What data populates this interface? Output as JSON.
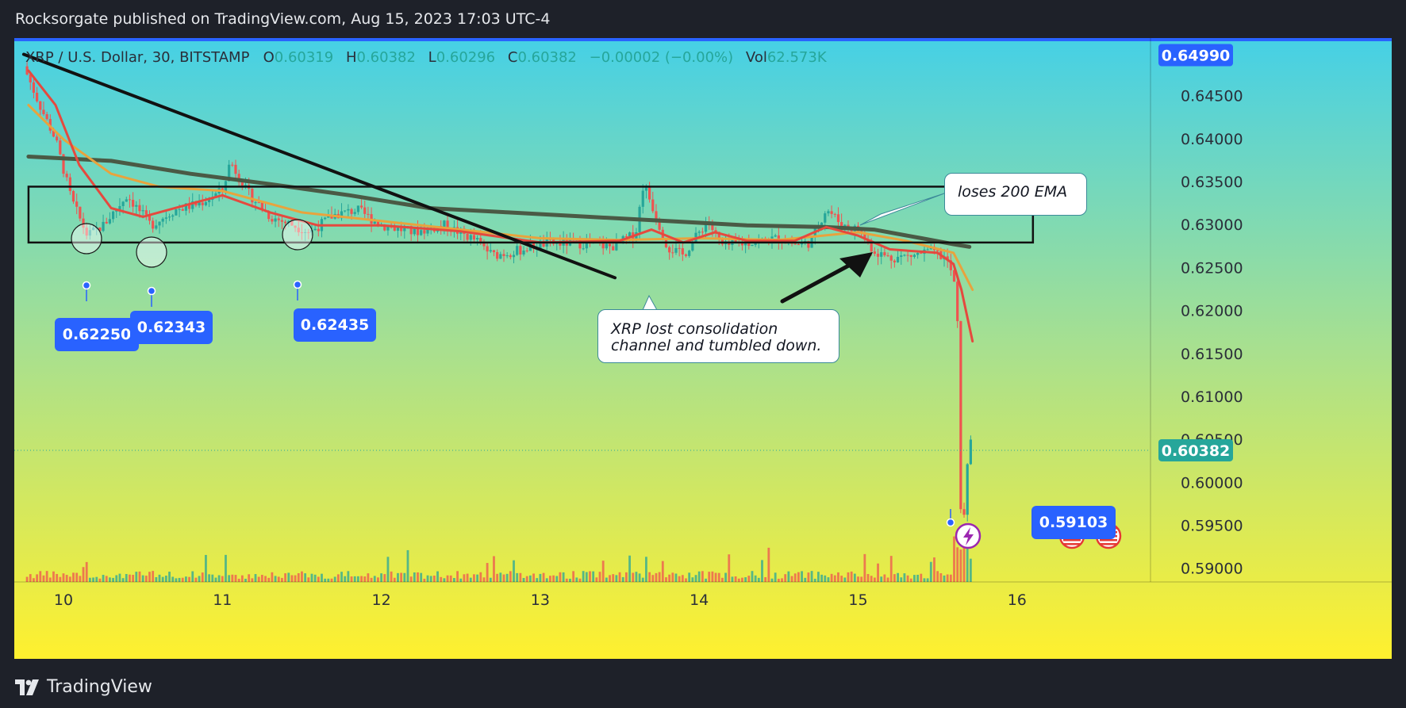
{
  "header": {
    "published_text": "Rocksorgate published on TradingView.com, Aug 15, 2023 17:03 UTC-4"
  },
  "legend": {
    "symbol": "XRP / U.S. Dollar, 30, BITSTAMP",
    "open_key": "O",
    "open": "0.60319",
    "high_key": "H",
    "high": "0.60382",
    "low_key": "L",
    "low": "0.60296",
    "close_key": "C",
    "close": "0.60382",
    "change": "−0.00002 (−0.00%)",
    "vol_key": "Vol",
    "vol": "62.573K"
  },
  "annotations": {
    "callout_consolidation": "XRP lost consolidation channel and tumbled down.",
    "callout_ema": "loses 200 EMA",
    "tags": [
      "0.62250",
      "0.62343",
      "0.62435",
      "0.59103"
    ]
  },
  "price_labels": {
    "top": "0.64990",
    "last": "0.60382"
  },
  "footer": {
    "brand": "TradingView"
  },
  "colors": {
    "bg_top": "#47d1e0",
    "bg_bottom": "#fff030",
    "up": "#26a69a",
    "down": "#ef5350",
    "ema_fast": "#e5493e",
    "ema_mid": "#e8a33d",
    "ema_200": "#4a5a45",
    "tag": "#2962ff",
    "last_label": "#26a69a"
  },
  "icons": [
    "tradingview-logo-icon",
    "lightning-icon",
    "us-flag-icon"
  ],
  "chart_data": {
    "type": "candlestick",
    "x_axis": {
      "type": "date",
      "tick_labels": [
        "10",
        "11",
        "12",
        "13",
        "14",
        "15",
        "16"
      ]
    },
    "y_axis": {
      "range": [
        0.5885,
        0.6505
      ],
      "tick_labels": [
        "0.64500",
        "0.64000",
        "0.63500",
        "0.63000",
        "0.62500",
        "0.62000",
        "0.61500",
        "0.61000",
        "0.60500",
        "0.60000",
        "0.59500",
        "0.59000"
      ]
    },
    "grid": false,
    "consolidation_channel": {
      "from_day": 9.78,
      "to_day": 16.1,
      "low": 0.628,
      "high": 0.6345
    },
    "trendline": {
      "from": [
        9.75,
        0.6499
      ],
      "to": [
        13.47,
        0.6239
      ]
    },
    "price_path": [
      [
        9.75,
        0.6485
      ],
      [
        9.85,
        0.644
      ],
      [
        9.95,
        0.64
      ],
      [
        10.05,
        0.633
      ],
      [
        10.15,
        0.6288
      ],
      [
        10.25,
        0.63
      ],
      [
        10.4,
        0.6335
      ],
      [
        10.55,
        0.63
      ],
      [
        10.7,
        0.6318
      ],
      [
        10.85,
        0.6325
      ],
      [
        11.0,
        0.634
      ],
      [
        11.05,
        0.6375
      ],
      [
        11.15,
        0.634
      ],
      [
        11.3,
        0.631
      ],
      [
        11.45,
        0.63
      ],
      [
        11.55,
        0.6292
      ],
      [
        11.7,
        0.6312
      ],
      [
        11.85,
        0.6318
      ],
      [
        12.0,
        0.63
      ],
      [
        12.2,
        0.6292
      ],
      [
        12.4,
        0.63
      ],
      [
        12.6,
        0.6282
      ],
      [
        12.7,
        0.6265
      ],
      [
        12.85,
        0.627
      ],
      [
        13.0,
        0.6278
      ],
      [
        13.2,
        0.628
      ],
      [
        13.45,
        0.6275
      ],
      [
        13.6,
        0.629
      ],
      [
        13.65,
        0.635
      ],
      [
        13.72,
        0.6315
      ],
      [
        13.8,
        0.6275
      ],
      [
        13.9,
        0.6265
      ],
      [
        14.05,
        0.6305
      ],
      [
        14.15,
        0.6275
      ],
      [
        14.3,
        0.628
      ],
      [
        14.5,
        0.6285
      ],
      [
        14.6,
        0.6278
      ],
      [
        14.7,
        0.628
      ],
      [
        14.8,
        0.632
      ],
      [
        14.9,
        0.63
      ],
      [
        15.0,
        0.6295
      ],
      [
        15.1,
        0.627
      ],
      [
        15.2,
        0.6262
      ],
      [
        15.35,
        0.6265
      ],
      [
        15.45,
        0.627
      ],
      [
        15.55,
        0.6262
      ],
      [
        15.6,
        0.624
      ],
      [
        15.63,
        0.618
      ],
      [
        15.65,
        0.591
      ],
      [
        15.68,
        0.601
      ],
      [
        15.7,
        0.605
      ],
      [
        15.72,
        0.6038
      ]
    ],
    "ema_fast": [
      [
        9.78,
        0.648
      ],
      [
        9.95,
        0.644
      ],
      [
        10.1,
        0.637
      ],
      [
        10.3,
        0.632
      ],
      [
        10.5,
        0.631
      ],
      [
        10.8,
        0.6325
      ],
      [
        11.0,
        0.6335
      ],
      [
        11.3,
        0.6315
      ],
      [
        11.6,
        0.63
      ],
      [
        12.0,
        0.63
      ],
      [
        12.5,
        0.6293
      ],
      [
        13.0,
        0.628
      ],
      [
        13.5,
        0.6282
      ],
      [
        13.7,
        0.6295
      ],
      [
        13.9,
        0.628
      ],
      [
        14.1,
        0.6292
      ],
      [
        14.3,
        0.6282
      ],
      [
        14.6,
        0.6282
      ],
      [
        14.8,
        0.6298
      ],
      [
        15.0,
        0.6288
      ],
      [
        15.2,
        0.6272
      ],
      [
        15.5,
        0.6268
      ],
      [
        15.6,
        0.6255
      ],
      [
        15.65,
        0.6225
      ],
      [
        15.72,
        0.6165
      ]
    ],
    "ema_mid": [
      [
        9.78,
        0.644
      ],
      [
        10.0,
        0.64
      ],
      [
        10.3,
        0.636
      ],
      [
        10.6,
        0.6345
      ],
      [
        11.0,
        0.634
      ],
      [
        11.5,
        0.6315
      ],
      [
        12.0,
        0.6305
      ],
      [
        12.5,
        0.6295
      ],
      [
        13.0,
        0.6285
      ],
      [
        13.5,
        0.6283
      ],
      [
        14.0,
        0.6285
      ],
      [
        14.5,
        0.6283
      ],
      [
        15.0,
        0.6292
      ],
      [
        15.3,
        0.6282
      ],
      [
        15.6,
        0.6268
      ],
      [
        15.72,
        0.6225
      ]
    ],
    "ema_200": [
      [
        9.78,
        0.638
      ],
      [
        10.3,
        0.6375
      ],
      [
        10.8,
        0.636
      ],
      [
        11.3,
        0.6348
      ],
      [
        11.8,
        0.6335
      ],
      [
        12.3,
        0.632
      ],
      [
        12.8,
        0.6315
      ],
      [
        13.3,
        0.631
      ],
      [
        13.8,
        0.6305
      ],
      [
        14.3,
        0.63
      ],
      [
        14.8,
        0.6298
      ],
      [
        15.1,
        0.6295
      ],
      [
        15.4,
        0.6285
      ],
      [
        15.6,
        0.6278
      ],
      [
        15.7,
        0.6275
      ]
    ]
  }
}
